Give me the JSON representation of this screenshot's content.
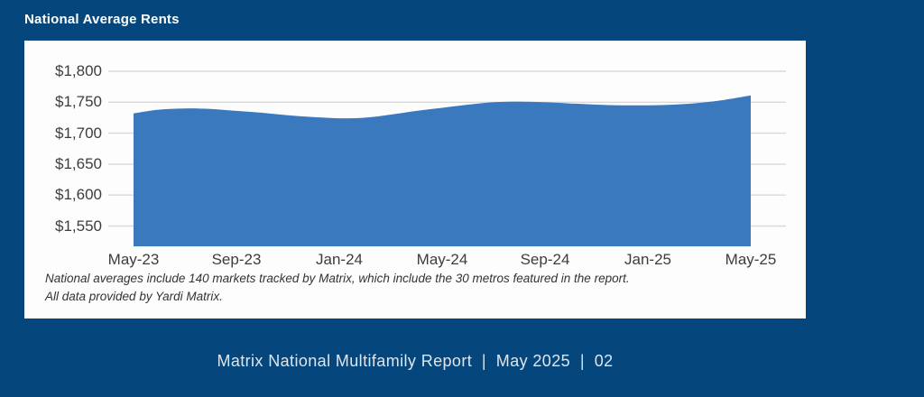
{
  "page": {
    "title": "National Average Rents",
    "footer": "Matrix National Multifamily Report  |  May 2025  |  02"
  },
  "card": {
    "footnote_line1": "National averages include 140 markets tracked by Matrix, which include the 30 metros featured in the report.",
    "footnote_line2": "All data provided by Yardi Matrix."
  },
  "colors": {
    "page_background": "#05477c",
    "card_background": "#fdfdfd",
    "area_fill": "#3b79be",
    "gridline": "#d9d9d9",
    "axis_text": "#3d3d3d",
    "title_text": "#ffffff",
    "footer_text": "#dde6ee"
  },
  "chart_data": {
    "type": "area",
    "title": "National Average Rents",
    "x": [
      "May-23",
      "Jun-23",
      "Jul-23",
      "Aug-23",
      "Sep-23",
      "Oct-23",
      "Nov-23",
      "Dec-23",
      "Jan-24",
      "Feb-24",
      "Mar-24",
      "Apr-24",
      "May-24",
      "Jun-24",
      "Jul-24",
      "Aug-24",
      "Sep-24",
      "Oct-24",
      "Nov-24",
      "Dec-24",
      "Jan-25",
      "Feb-25",
      "Mar-25",
      "Apr-25",
      "May-25"
    ],
    "values": [
      1732,
      1738,
      1740,
      1739,
      1736,
      1733,
      1729,
      1726,
      1724,
      1725,
      1730,
      1736,
      1741,
      1746,
      1750,
      1751,
      1750,
      1748,
      1746,
      1745,
      1745,
      1746,
      1749,
      1754,
      1761
    ],
    "x_tick_labels": [
      "May-23",
      "Sep-23",
      "Jan-24",
      "May-24",
      "Sep-24",
      "Jan-25",
      "May-25"
    ],
    "y_tick_labels": [
      "$1,800",
      "$1,750",
      "$1,700",
      "$1,650",
      "$1,600",
      "$1,550"
    ],
    "y_tick_values": [
      1800,
      1750,
      1700,
      1650,
      1600,
      1550
    ],
    "xlabel": "",
    "ylabel": "",
    "ylim": [
      1518,
      1813
    ],
    "grid": true,
    "legend": "none",
    "area_color": "#3b79be"
  }
}
